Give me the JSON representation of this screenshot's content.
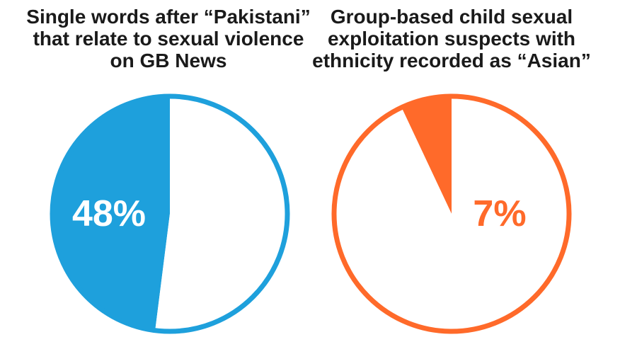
{
  "chart_data": [
    {
      "type": "pie",
      "title": "Single words after “Pakistani” that relate to sexual violence on GB News",
      "value_label": "48%",
      "slices": [
        {
          "label": "",
          "value": 48,
          "color": "#1ea0dc"
        },
        {
          "label": "",
          "value": 52,
          "color": "#ffffff"
        }
      ],
      "outline_color": "#1ea0dc",
      "label_color": "#ffffff"
    },
    {
      "type": "pie",
      "title": "Group-based child sexual exploitation suspects with ethnicity recorded as “Asian”",
      "value_label": "7%",
      "slices": [
        {
          "label": "",
          "value": 7,
          "color": "#ff6a2a"
        },
        {
          "label": "",
          "value": 93,
          "color": "#ffffff"
        }
      ],
      "outline_color": "#ff6a2a",
      "label_color": "#ff6a2a"
    }
  ]
}
